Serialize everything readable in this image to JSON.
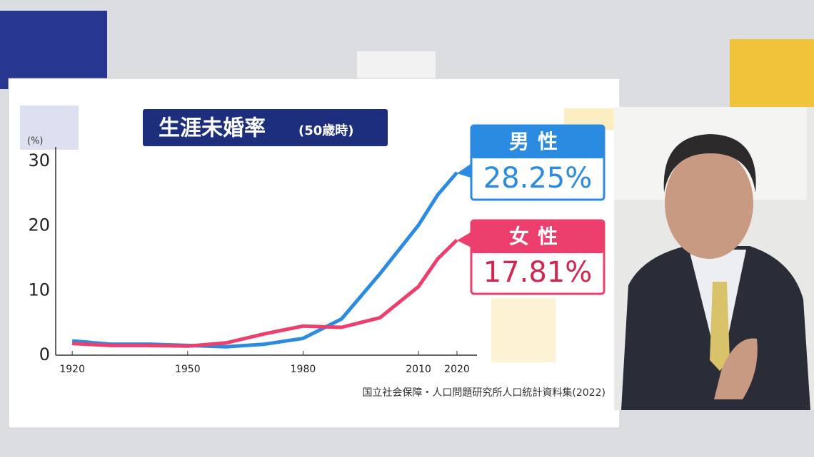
{
  "chart_data": {
    "type": "line",
    "title": "生涯未婚率",
    "subtitle": "(50歳時)",
    "y_label": "(%)",
    "source": "国立社会保障・人口問題研究所人口統計資料集(2022)",
    "x": [
      1920,
      1930,
      1940,
      1950,
      1960,
      1970,
      1980,
      1990,
      2000,
      2010,
      2015,
      2020
    ],
    "series": [
      {
        "name": "男性",
        "color": "#2a8be0",
        "values": [
          2.2,
          1.7,
          1.7,
          1.5,
          1.3,
          1.7,
          2.6,
          5.6,
          12.6,
          20.1,
          24.8,
          28.25
        ],
        "value_labels": [
          null,
          null,
          null,
          null,
          null,
          null,
          null,
          null,
          null,
          null,
          null,
          "28.25%"
        ]
      },
      {
        "name": "女性",
        "color": "#ec3f6e",
        "values": [
          1.8,
          1.5,
          1.5,
          1.4,
          1.9,
          3.3,
          4.5,
          4.3,
          5.8,
          10.6,
          14.9,
          17.81
        ],
        "value_labels": [
          null,
          null,
          null,
          null,
          null,
          null,
          null,
          null,
          null,
          null,
          null,
          "17.81%"
        ]
      }
    ],
    "xlim": [
      1915.7,
      2025.2
    ],
    "xticks": [
      1920,
      1950,
      1980,
      2010,
      2020
    ],
    "ylim": [
      0,
      32.2
    ],
    "yticks": [
      0,
      10,
      20,
      30
    ],
    "grid": false
  }
}
